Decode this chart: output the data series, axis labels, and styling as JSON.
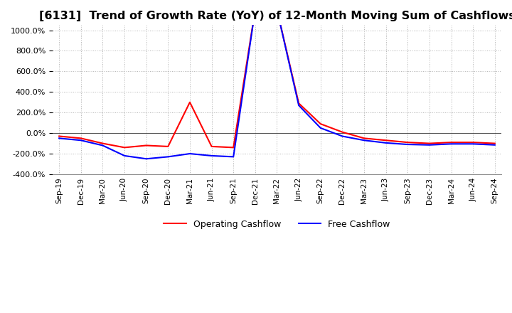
{
  "title": "[6131]  Trend of Growth Rate (YoY) of 12-Month Moving Sum of Cashflows",
  "title_fontsize": 11.5,
  "background_color": "#ffffff",
  "grid_color": "#aaaaaa",
  "ylim": [
    -400,
    1050
  ],
  "yticks": [
    -400,
    -200,
    0,
    200,
    400,
    600,
    800,
    1000
  ],
  "x_labels": [
    "Sep-19",
    "Dec-19",
    "Mar-20",
    "Jun-20",
    "Sep-20",
    "Dec-20",
    "Mar-21",
    "Jun-21",
    "Sep-21",
    "Dec-21",
    "Mar-22",
    "Jun-22",
    "Sep-22",
    "Dec-22",
    "Mar-23",
    "Jun-23",
    "Sep-23",
    "Dec-23",
    "Mar-24",
    "Jun-24",
    "Sep-24"
  ],
  "operating_cashflow": [
    -30,
    -50,
    -100,
    -140,
    -120,
    -130,
    300,
    -130,
    -140,
    1200,
    1200,
    290,
    90,
    10,
    -50,
    -70,
    -90,
    -100,
    -90,
    -90,
    -100
  ],
  "free_cashflow": [
    -50,
    -70,
    -120,
    -220,
    -250,
    -230,
    -200,
    -220,
    -230,
    1200,
    1200,
    270,
    50,
    -30,
    -70,
    -95,
    -110,
    -115,
    -105,
    -105,
    -115
  ],
  "operating_color": "#ff0000",
  "free_color": "#0000ff",
  "line_width": 1.5
}
